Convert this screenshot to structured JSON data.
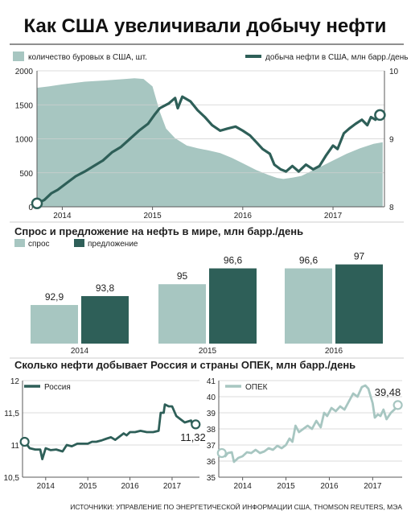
{
  "title": "Как США увеличивали добычу нефти",
  "source": "ИСТОЧНИКИ: УПРАВЛЕНИЕ ПО ЭНЕРГЕТИЧЕСКОЙ ИНФОРМАЦИИ США, THOMSON REUTERS, МЭА",
  "colors": {
    "dark_teal": "#2e5f58",
    "light_teal": "#a7c6c1",
    "grid": "#cfcfcf",
    "axis": "#5a5a5a",
    "text": "#1f1f1f"
  },
  "chart_data": [
    {
      "id": "us",
      "type": "area+line",
      "legend": {
        "rigs": "количество буровых в США, шт.",
        "production": "добыча нефти в США, млн барр./день"
      },
      "x_tick_labels": [
        "2014",
        "2015",
        "2016",
        "2017"
      ],
      "x_ticks": [
        2014.0,
        2015.0,
        2016.0,
        2017.0
      ],
      "x_range": [
        2013.72,
        2017.57
      ],
      "left_axis": {
        "ticks": [
          0,
          500,
          1000,
          1500,
          2000
        ],
        "range": [
          0,
          2000
        ]
      },
      "right_axis": {
        "ticks": [
          8,
          9,
          10
        ],
        "range": [
          8,
          10
        ]
      },
      "grid": true,
      "rigs_series": [
        [
          2013.72,
          1750
        ],
        [
          2013.85,
          1770
        ],
        [
          2014.0,
          1800
        ],
        [
          2014.25,
          1840
        ],
        [
          2014.5,
          1860
        ],
        [
          2014.7,
          1880
        ],
        [
          2014.8,
          1890
        ],
        [
          2014.9,
          1880
        ],
        [
          2015.0,
          1770
        ],
        [
          2015.08,
          1400
        ],
        [
          2015.15,
          1150
        ],
        [
          2015.25,
          1010
        ],
        [
          2015.38,
          900
        ],
        [
          2015.5,
          860
        ],
        [
          2015.62,
          830
        ],
        [
          2015.75,
          790
        ],
        [
          2015.88,
          720
        ],
        [
          2016.0,
          640
        ],
        [
          2016.15,
          540
        ],
        [
          2016.28,
          470
        ],
        [
          2016.38,
          425
        ],
        [
          2016.45,
          410
        ],
        [
          2016.55,
          430
        ],
        [
          2016.65,
          455
        ],
        [
          2016.75,
          520
        ],
        [
          2016.88,
          600
        ],
        [
          2017.0,
          680
        ],
        [
          2017.15,
          780
        ],
        [
          2017.3,
          860
        ],
        [
          2017.45,
          925
        ],
        [
          2017.55,
          950
        ]
      ],
      "production_series": [
        [
          2013.72,
          8.05
        ],
        [
          2013.8,
          8.1
        ],
        [
          2013.88,
          8.2
        ],
        [
          2013.95,
          8.25
        ],
        [
          2014.05,
          8.35
        ],
        [
          2014.15,
          8.45
        ],
        [
          2014.25,
          8.52
        ],
        [
          2014.35,
          8.6
        ],
        [
          2014.45,
          8.68
        ],
        [
          2014.55,
          8.8
        ],
        [
          2014.65,
          8.88
        ],
        [
          2014.75,
          9.0
        ],
        [
          2014.85,
          9.12
        ],
        [
          2014.95,
          9.22
        ],
        [
          2015.02,
          9.35
        ],
        [
          2015.08,
          9.45
        ],
        [
          2015.18,
          9.52
        ],
        [
          2015.25,
          9.6
        ],
        [
          2015.28,
          9.45
        ],
        [
          2015.33,
          9.62
        ],
        [
          2015.42,
          9.55
        ],
        [
          2015.5,
          9.42
        ],
        [
          2015.58,
          9.32
        ],
        [
          2015.66,
          9.2
        ],
        [
          2015.75,
          9.12
        ],
        [
          2015.83,
          9.15
        ],
        [
          2015.92,
          9.18
        ],
        [
          2016.0,
          9.12
        ],
        [
          2016.08,
          9.05
        ],
        [
          2016.15,
          8.95
        ],
        [
          2016.22,
          8.85
        ],
        [
          2016.3,
          8.78
        ],
        [
          2016.35,
          8.62
        ],
        [
          2016.42,
          8.55
        ],
        [
          2016.48,
          8.52
        ],
        [
          2016.55,
          8.6
        ],
        [
          2016.62,
          8.52
        ],
        [
          2016.7,
          8.62
        ],
        [
          2016.78,
          8.55
        ],
        [
          2016.85,
          8.6
        ],
        [
          2016.92,
          8.75
        ],
        [
          2017.0,
          8.9
        ],
        [
          2017.05,
          8.85
        ],
        [
          2017.12,
          9.08
        ],
        [
          2017.18,
          9.15
        ],
        [
          2017.25,
          9.22
        ],
        [
          2017.32,
          9.28
        ],
        [
          2017.38,
          9.2
        ],
        [
          2017.42,
          9.32
        ],
        [
          2017.47,
          9.28
        ],
        [
          2017.52,
          9.35
        ]
      ]
    },
    {
      "id": "demand_supply",
      "type": "bar",
      "title": "Спрос и предложение на нефть в мире, млн барр./день",
      "categories": [
        "2014",
        "2015",
        "2016"
      ],
      "series": [
        {
          "name": "спрос",
          "values": [
            92.9,
            95,
            96.6
          ],
          "labels": [
            "92,9",
            "95",
            "96,6"
          ]
        },
        {
          "name": "предложение",
          "values": [
            93.8,
            96.6,
            97
          ],
          "labels": [
            "93,8",
            "96,6",
            "97"
          ]
        }
      ]
    },
    {
      "id": "russia_opec",
      "type": "line",
      "title": "Сколько нефти добывает Россия и страны ОПЕК, млн барр./день",
      "panels": [
        {
          "id": "russia",
          "legend": "Россия",
          "x_tick_labels": [
            "2014",
            "2015",
            "2016",
            "2017"
          ],
          "x_ticks": [
            2014.0,
            2015.0,
            2016.0,
            2017.0
          ],
          "x_range": [
            2013.45,
            2017.65
          ],
          "y_ticks": [
            10.5,
            11,
            11.5,
            12
          ],
          "y_tick_labels": [
            "10,5",
            "11",
            "11,5",
            "12"
          ],
          "y_range": [
            10.5,
            12
          ],
          "end_label": "11,32",
          "series": [
            [
              2013.5,
              11.05
            ],
            [
              2013.62,
              10.95
            ],
            [
              2013.75,
              10.93
            ],
            [
              2013.87,
              10.93
            ],
            [
              2013.92,
              10.78
            ],
            [
              2014.0,
              10.95
            ],
            [
              2014.12,
              10.92
            ],
            [
              2014.25,
              10.93
            ],
            [
              2014.4,
              10.9
            ],
            [
              2014.5,
              11.0
            ],
            [
              2014.62,
              10.98
            ],
            [
              2014.75,
              11.02
            ],
            [
              2014.9,
              11.02
            ],
            [
              2015.0,
              11.02
            ],
            [
              2015.1,
              11.05
            ],
            [
              2015.2,
              11.05
            ],
            [
              2015.32,
              11.07
            ],
            [
              2015.45,
              11.1
            ],
            [
              2015.55,
              11.12
            ],
            [
              2015.65,
              11.08
            ],
            [
              2015.75,
              11.13
            ],
            [
              2015.85,
              11.18
            ],
            [
              2015.92,
              11.15
            ],
            [
              2016.0,
              11.2
            ],
            [
              2016.12,
              11.2
            ],
            [
              2016.25,
              11.22
            ],
            [
              2016.4,
              11.2
            ],
            [
              2016.55,
              11.2
            ],
            [
              2016.68,
              11.22
            ],
            [
              2016.73,
              11.5
            ],
            [
              2016.8,
              11.5
            ],
            [
              2016.83,
              11.63
            ],
            [
              2016.92,
              11.6
            ],
            [
              2017.0,
              11.6
            ],
            [
              2017.1,
              11.45
            ],
            [
              2017.2,
              11.4
            ],
            [
              2017.3,
              11.35
            ],
            [
              2017.45,
              11.38
            ],
            [
              2017.5,
              11.28
            ],
            [
              2017.56,
              11.32
            ]
          ]
        },
        {
          "id": "opec",
          "legend": "ОПЕК",
          "x_tick_labels": [
            "2014",
            "2015",
            "2016",
            "2017"
          ],
          "x_ticks": [
            2014.0,
            2015.0,
            2016.0,
            2017.0
          ],
          "x_range": [
            2013.45,
            2017.68
          ],
          "y_ticks": [
            35,
            36,
            37,
            38,
            39,
            40,
            41
          ],
          "y_range": [
            35,
            41
          ],
          "end_label": "39,48",
          "series": [
            [
              2013.52,
              36.5
            ],
            [
              2013.6,
              36.3
            ],
            [
              2013.66,
              36.5
            ],
            [
              2013.75,
              36.55
            ],
            [
              2013.8,
              35.95
            ],
            [
              2013.9,
              36.2
            ],
            [
              2014.0,
              36.3
            ],
            [
              2014.1,
              36.55
            ],
            [
              2014.2,
              36.5
            ],
            [
              2014.3,
              36.7
            ],
            [
              2014.4,
              36.5
            ],
            [
              2014.5,
              36.6
            ],
            [
              2014.6,
              36.8
            ],
            [
              2014.7,
              36.7
            ],
            [
              2014.8,
              36.95
            ],
            [
              2014.9,
              36.8
            ],
            [
              2015.0,
              37.0
            ],
            [
              2015.08,
              37.4
            ],
            [
              2015.15,
              37.2
            ],
            [
              2015.22,
              38.2
            ],
            [
              2015.3,
              37.8
            ],
            [
              2015.4,
              38.0
            ],
            [
              2015.5,
              38.2
            ],
            [
              2015.6,
              38.0
            ],
            [
              2015.7,
              38.5
            ],
            [
              2015.8,
              38.1
            ],
            [
              2015.88,
              39.0
            ],
            [
              2015.95,
              38.8
            ],
            [
              2016.05,
              39.3
            ],
            [
              2016.15,
              39.1
            ],
            [
              2016.25,
              39.4
            ],
            [
              2016.35,
              39.2
            ],
            [
              2016.45,
              39.7
            ],
            [
              2016.55,
              40.2
            ],
            [
              2016.65,
              40.0
            ],
            [
              2016.75,
              40.6
            ],
            [
              2016.83,
              40.7
            ],
            [
              2016.9,
              40.5
            ],
            [
              2017.0,
              39.6
            ],
            [
              2017.05,
              38.7
            ],
            [
              2017.12,
              38.9
            ],
            [
              2017.18,
              38.8
            ],
            [
              2017.25,
              39.2
            ],
            [
              2017.32,
              38.6
            ],
            [
              2017.42,
              39.0
            ],
            [
              2017.5,
              39.2
            ],
            [
              2017.58,
              39.48
            ]
          ]
        }
      ]
    }
  ]
}
